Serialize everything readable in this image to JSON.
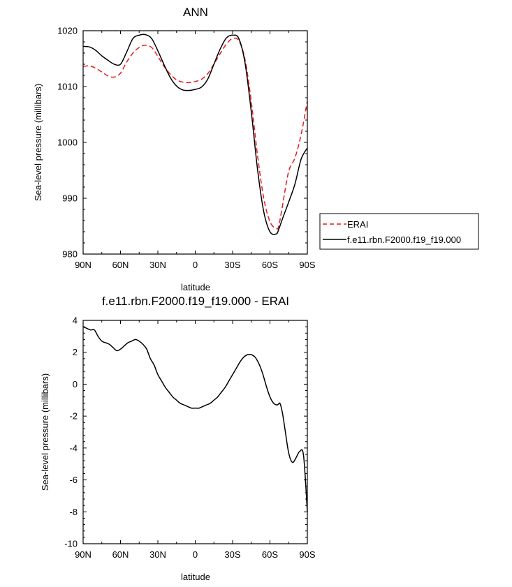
{
  "chart_data": [
    {
      "type": "line",
      "title": "ANN",
      "xlabel": "latitude",
      "ylabel": "Sea-level pressure (millibars)",
      "xlim": [
        90,
        -90
      ],
      "ylim": [
        980,
        1020
      ],
      "x_ticks": [
        90,
        60,
        30,
        0,
        -30,
        -60,
        -90
      ],
      "x_tick_labels": [
        "90N",
        "60N",
        "30N",
        "0",
        "30S",
        "60S",
        "90S"
      ],
      "y_ticks": [
        980,
        990,
        1000,
        1010,
        1020
      ],
      "y_tick_labels": [
        "980",
        "990",
        "1000",
        "1010",
        "1020"
      ],
      "legend_position": "right",
      "series": [
        {
          "name": "ERAI",
          "color": "#e8191e",
          "style": "dashed",
          "x": [
            90,
            85,
            80,
            75,
            70,
            65,
            60,
            55,
            50,
            45,
            40,
            35,
            30,
            25,
            20,
            15,
            10,
            5,
            0,
            -5,
            -10,
            -15,
            -20,
            -25,
            -30,
            -35,
            -40,
            -45,
            -50,
            -55,
            -60,
            -65,
            -67,
            -70,
            -75,
            -80,
            -85,
            -90
          ],
          "values": [
            1013.6,
            1013.7,
            1013.3,
            1012.6,
            1011.9,
            1011.7,
            1012.4,
            1014.4,
            1016.0,
            1017.0,
            1017.4,
            1017.0,
            1015.4,
            1013.6,
            1012.2,
            1011.2,
            1010.8,
            1010.7,
            1010.9,
            1011.3,
            1012.3,
            1014.0,
            1015.9,
            1017.6,
            1018.6,
            1018.2,
            1014.8,
            1007.3,
            997.7,
            990.0,
            985.8,
            984.6,
            985.0,
            988.6,
            994.8,
            997.2,
            1001.4,
            1007.4
          ]
        },
        {
          "name": "f.e11.rbn.F2000.f19_f19.000",
          "color": "#000000",
          "style": "solid",
          "x": [
            90,
            85,
            80,
            75,
            70,
            65,
            60,
            55,
            50,
            45,
            40,
            35,
            30,
            25,
            20,
            15,
            10,
            5,
            0,
            -5,
            -10,
            -15,
            -20,
            -25,
            -30,
            -35,
            -40,
            -45,
            -50,
            -55,
            -60,
            -65,
            -67,
            -70,
            -75,
            -80,
            -85,
            -90
          ],
          "values": [
            1017.2,
            1017.1,
            1016.5,
            1015.5,
            1014.7,
            1014.0,
            1014.0,
            1016.2,
            1018.6,
            1019.2,
            1019.3,
            1018.6,
            1016.4,
            1013.9,
            1011.6,
            1010.1,
            1009.4,
            1009.3,
            1009.5,
            1009.9,
            1011.3,
            1014.0,
            1016.7,
            1018.7,
            1019.2,
            1018.6,
            1014.2,
            1005.5,
            995.2,
            987.6,
            984.0,
            983.6,
            984.4,
            986.3,
            989.3,
            992.5,
            997.0,
            999.0
          ]
        }
      ]
    },
    {
      "type": "line",
      "title": "f.e11.rbn.F2000.f19_f19.000 - ERAI",
      "xlabel": "latitude",
      "ylabel": "Sea-level pressure (millibars)",
      "xlim": [
        90,
        -90
      ],
      "ylim": [
        -10,
        4
      ],
      "x_ticks": [
        90,
        60,
        30,
        0,
        -30,
        -60,
        -90
      ],
      "x_tick_labels": [
        "90N",
        "60N",
        "30N",
        "0",
        "30S",
        "60S",
        "90S"
      ],
      "y_ticks": [
        -10,
        -8,
        -6,
        -4,
        -2,
        0,
        2,
        4
      ],
      "y_tick_labels": [
        "-10",
        "-8",
        "-6",
        "-4",
        "-2",
        "0",
        "2",
        "4"
      ],
      "series": [
        {
          "name": "f.e11.rbn.F2000.f19_f19.000 - ERAI",
          "color": "#000000",
          "style": "solid",
          "x": [
            90,
            87,
            84,
            81,
            78,
            75,
            72,
            69,
            66,
            63,
            60,
            57,
            54,
            51,
            48,
            45,
            42,
            39,
            36,
            33,
            30,
            27,
            24,
            21,
            18,
            15,
            12,
            9,
            6,
            3,
            0,
            -3,
            -6,
            -9,
            -12,
            -15,
            -18,
            -21,
            -24,
            -27,
            -30,
            -33,
            -36,
            -39,
            -42,
            -45,
            -48,
            -51,
            -54,
            -57,
            -60,
            -63,
            -66,
            -68,
            -70,
            -72,
            -75,
            -78,
            -81,
            -84,
            -87,
            -90
          ],
          "values": [
            3.6,
            3.5,
            3.4,
            3.4,
            3.0,
            2.7,
            2.6,
            2.5,
            2.3,
            2.1,
            2.2,
            2.4,
            2.6,
            2.7,
            2.8,
            2.7,
            2.5,
            2.2,
            1.6,
            1.2,
            0.6,
            0.2,
            -0.2,
            -0.5,
            -0.8,
            -1.0,
            -1.2,
            -1.3,
            -1.4,
            -1.5,
            -1.5,
            -1.5,
            -1.4,
            -1.3,
            -1.2,
            -1.0,
            -0.8,
            -0.5,
            -0.2,
            0.2,
            0.6,
            1.0,
            1.4,
            1.7,
            1.85,
            1.85,
            1.7,
            1.3,
            0.7,
            -0.1,
            -0.8,
            -1.2,
            -1.3,
            -1.2,
            -1.8,
            -2.8,
            -4.3,
            -4.9,
            -4.6,
            -4.2,
            -4.5,
            -8.0
          ]
        }
      ]
    }
  ]
}
